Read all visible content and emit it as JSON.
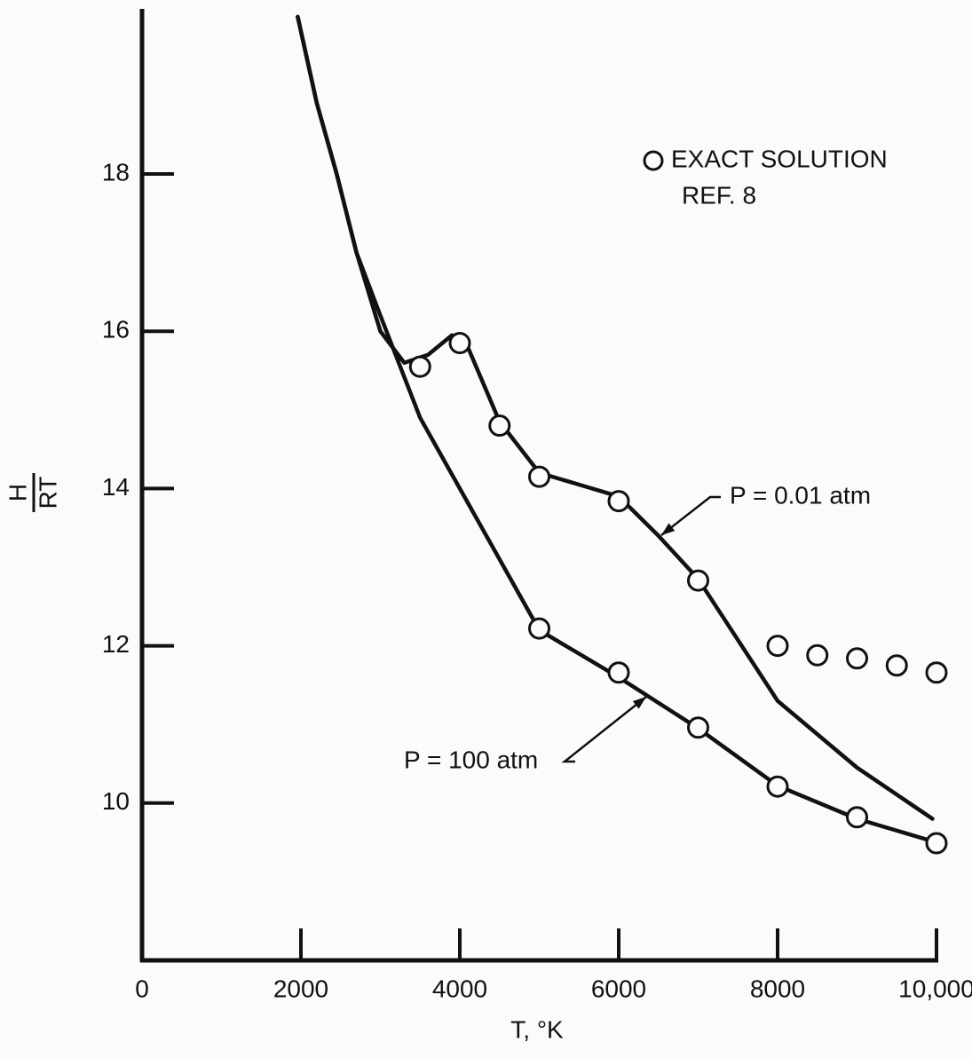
{
  "chart_data": {
    "type": "line",
    "xlabel": "T, °K",
    "ylabel_numerator": "H",
    "ylabel_denominator": "RT",
    "xlim": [
      0,
      10000
    ],
    "ylim": [
      8,
      20.1
    ],
    "xticks": [
      0,
      2000,
      4000,
      6000,
      8000,
      {
        "value": 10000,
        "label": "10,000"
      }
    ],
    "yticks": [
      10,
      12,
      14,
      16,
      18
    ],
    "legend_note": "REF. 8",
    "series": [
      {
        "name": "P = 0.01 atm",
        "type": "line",
        "color": "#111111",
        "x": [
          1960,
          2200,
          2450,
          2700,
          3000,
          3300,
          3600,
          3900,
          4100,
          4500,
          5000,
          5500,
          6000,
          6500,
          7000,
          8000,
          9000,
          9950
        ],
        "values": [
          20.0,
          18.9,
          18.0,
          17.0,
          16.0,
          15.6,
          15.7,
          15.95,
          15.8,
          14.85,
          14.2,
          14.05,
          13.9,
          13.4,
          12.85,
          11.3,
          10.45,
          9.8
        ]
      },
      {
        "name": "P = 100 atm",
        "type": "line",
        "color": "#111111",
        "x": [
          1960,
          2200,
          2450,
          2700,
          3000,
          3500,
          4000,
          4500,
          5000,
          5500,
          6000,
          7000,
          8000,
          9000,
          10000
        ],
        "values": [
          20.0,
          18.9,
          18.0,
          17.0,
          16.2,
          14.9,
          14.0,
          13.1,
          12.2,
          11.9,
          11.6,
          10.95,
          10.22,
          9.8,
          9.5
        ]
      },
      {
        "name": "EXACT SOLUTION",
        "type": "scatter",
        "color": "#111111",
        "x": [
          3500,
          4000,
          4500,
          5000,
          6000,
          7000,
          8000,
          8500,
          9000,
          9500,
          10000,
          5000,
          6000,
          7000,
          8000,
          9000,
          10000
        ],
        "values": [
          15.55,
          15.85,
          14.8,
          14.15,
          13.84,
          12.83,
          12.0,
          11.88,
          11.84,
          11.75,
          11.66,
          12.22,
          11.66,
          10.96,
          10.21,
          9.82,
          9.49
        ]
      }
    ]
  }
}
